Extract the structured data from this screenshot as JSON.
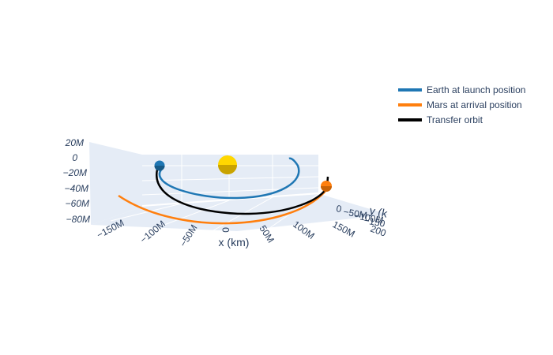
{
  "chart_data": {
    "type": "line",
    "title": "",
    "xlabel": "x (km)",
    "ylabel": "y (k",
    "zlabel": "",
    "x_ticks": [
      "−150M",
      "−100M",
      "−50M",
      "0",
      "50M",
      "100M",
      "150M",
      "200"
    ],
    "y_ticks": [
      "0",
      "−50M",
      "−100M",
      "−150"
    ],
    "z_ticks": [
      "20M",
      "0",
      "−20M",
      "−40M",
      "−60M",
      "−80M"
    ],
    "legend_position": "top-right",
    "series": [
      {
        "name": "Earth at launch position",
        "color": "#1f77b4"
      },
      {
        "name": "Mars at arrival position",
        "color": "#ff7f0e"
      },
      {
        "name": "Transfer orbit",
        "color": "#000000"
      }
    ],
    "sun": {
      "color": "#ffd700"
    },
    "grid": true
  }
}
